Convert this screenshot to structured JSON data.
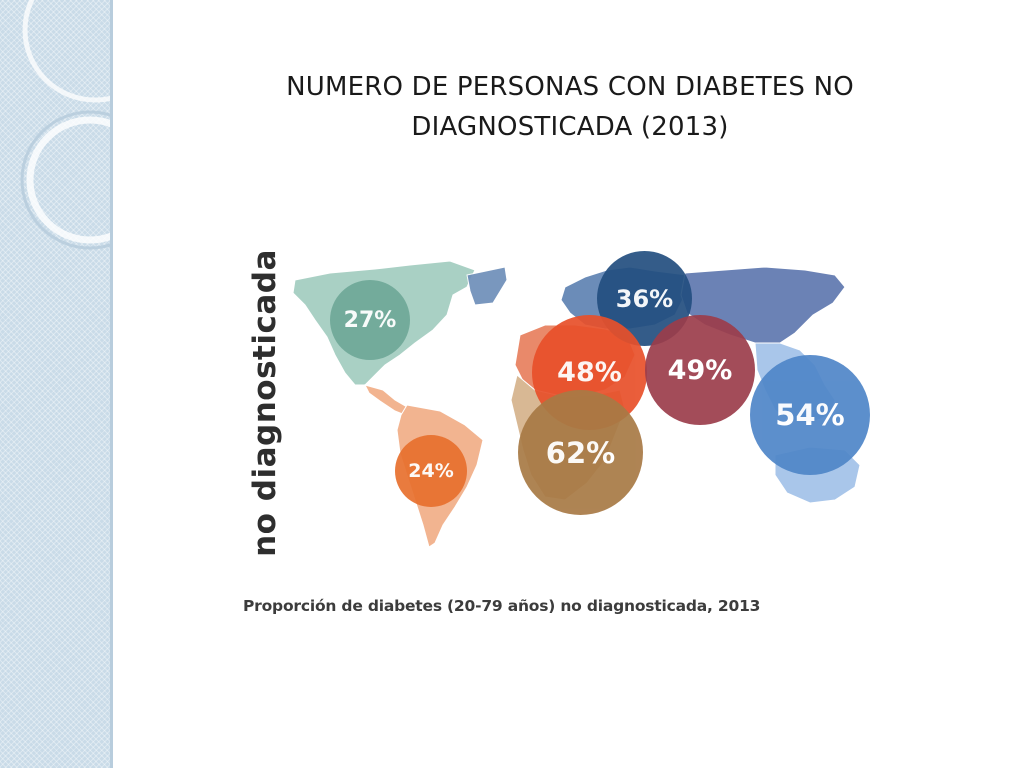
{
  "slide": {
    "title_line1": "NUMERO DE PERSONAS CON DIABETES NO",
    "title_line2": "DIAGNOSTICADA (2013)"
  },
  "figure": {
    "vertical_label": "no diagnosticada",
    "caption": "Proporción de diabetes (20-79 años) no diagnosticada, 2013",
    "regions": [
      {
        "label": "27%",
        "color": "#6fa898"
      },
      {
        "label": "36%",
        "color": "#234f80"
      },
      {
        "label": "48%",
        "color": "#e8502a"
      },
      {
        "label": "49%",
        "color": "#9c3d4b"
      },
      {
        "label": "54%",
        "color": "#4f86c8"
      },
      {
        "label": "24%",
        "color": "#e8702e"
      },
      {
        "label": "62%",
        "color": "#a87a45"
      }
    ],
    "land_colors": {
      "north_america": "#a9d0c4",
      "south_america": "#f2b490",
      "europe": "#6b8cb8",
      "asia": "#6b82b5",
      "middle_east": "#e9896a",
      "africa": "#d8b894",
      "southeast_asia": "#a9c6ea"
    }
  }
}
